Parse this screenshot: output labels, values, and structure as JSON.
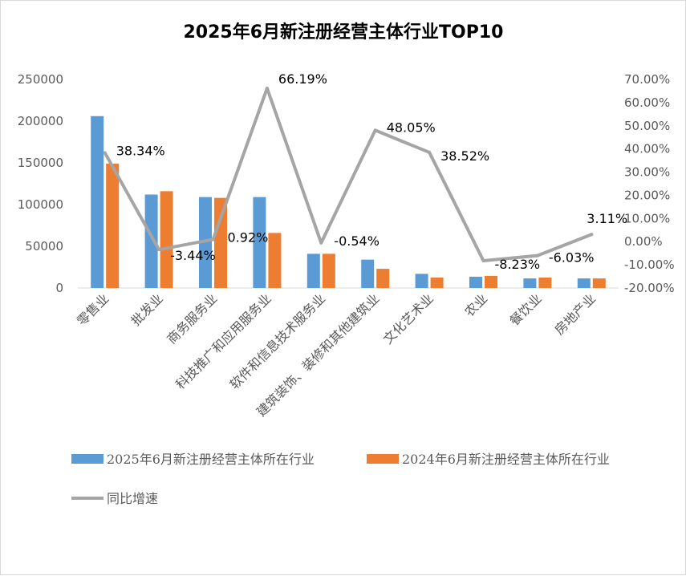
{
  "chart_data": {
    "type": "bar",
    "title": "2025年6月新注册经营主体行业TOP10",
    "categories": [
      "零售业",
      "批发业",
      "商务服务业",
      "科技推广和应用服务业",
      "软件和信息技术服务业",
      "建筑装饰、装修和其他建筑业",
      "文化艺术业",
      "农业",
      "餐饮业",
      "房地产业"
    ],
    "series": [
      {
        "name": "2025年6月新注册经营主体所在行业",
        "type": "bar",
        "axis": "left",
        "color": "#5b9bd5",
        "values": [
          206000,
          112000,
          109000,
          109000,
          41000,
          34000,
          17000,
          13500,
          11500,
          11500
        ]
      },
      {
        "name": "2024年6月新注册经营主体所在行业",
        "type": "bar",
        "axis": "left",
        "color": "#ed7d31",
        "values": [
          149000,
          116000,
          108000,
          66000,
          41000,
          23000,
          12500,
          14500,
          12500,
          11500
        ]
      },
      {
        "name": "同比增速",
        "type": "line",
        "axis": "right",
        "color": "#a5a5a5",
        "values": [
          38.34,
          -3.44,
          0.92,
          66.19,
          -0.54,
          48.05,
          38.52,
          -8.23,
          -6.03,
          3.11
        ],
        "labels": [
          "38.34%",
          "-3.44%",
          "0.92%",
          "66.19%",
          "-0.54%",
          "48.05%",
          "38.52%",
          "-8.23%",
          "-6.03%",
          "3.11%"
        ]
      }
    ],
    "y_left": {
      "min": 0,
      "max": 250000,
      "step": 50000,
      "ticks": [
        "0",
        "50000",
        "100000",
        "150000",
        "200000",
        "250000"
      ]
    },
    "y_right": {
      "min": -20,
      "max": 70,
      "step": 10,
      "ticks": [
        "-20.00%",
        "-10.00%",
        "0.00%",
        "10.00%",
        "20.00%",
        "30.00%",
        "40.00%",
        "50.00%",
        "60.00%",
        "70.00%"
      ]
    },
    "grid": false,
    "legend": "bottom"
  }
}
